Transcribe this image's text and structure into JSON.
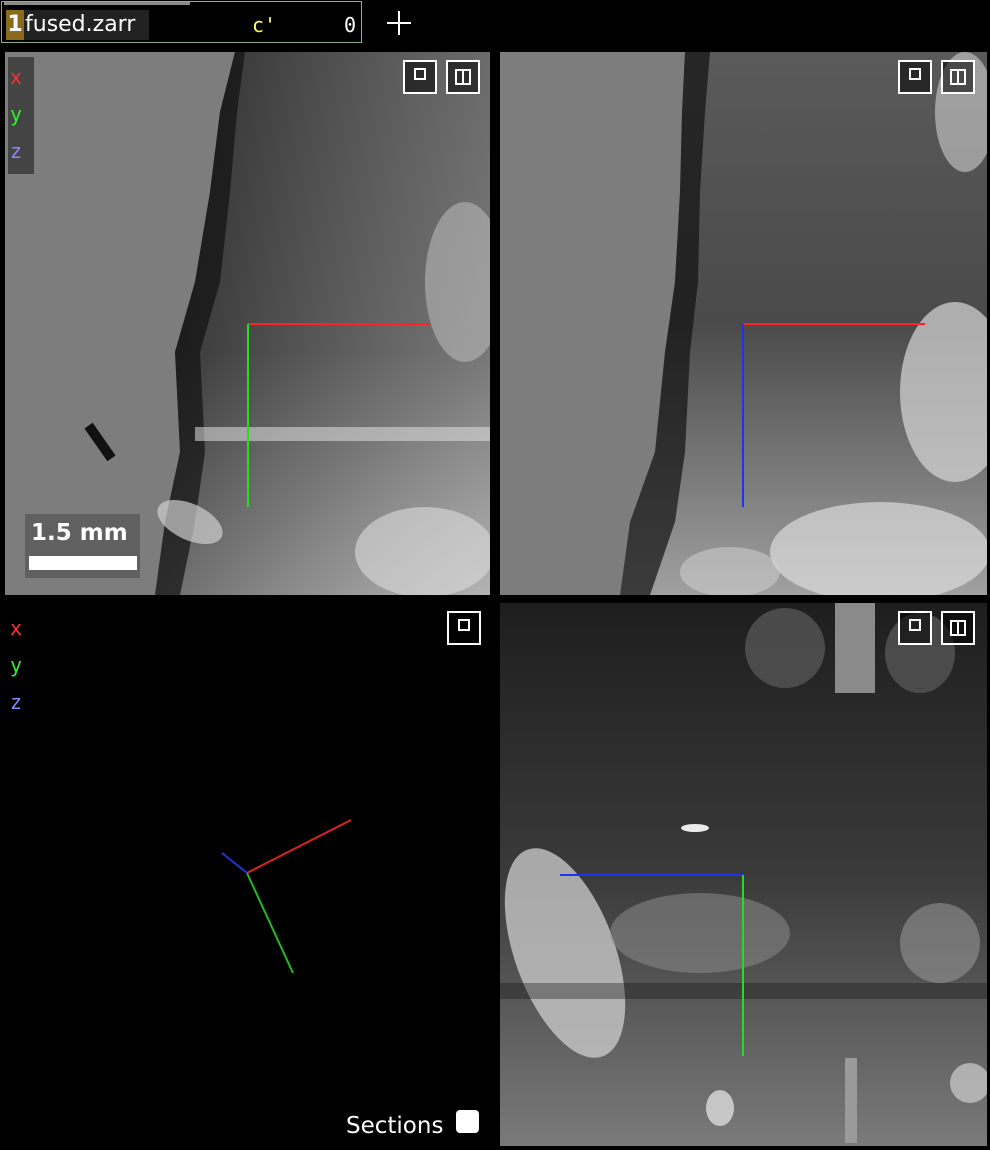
{
  "layer": {
    "index": "1",
    "name": "fused.zarr",
    "dimension_label": "c'",
    "dimension_value": "0"
  },
  "toolbar": {
    "add_layer_icon": "plus-icon"
  },
  "axes_legend": {
    "x": "x",
    "y": "y",
    "z": "z",
    "colors": {
      "x": "#ff3333",
      "y": "#33ee33",
      "z": "#8888ff"
    }
  },
  "scalebar": {
    "label": "1.5 mm"
  },
  "panel_buttons": {
    "maximize_icon": "maximize-icon",
    "split_icon": "split-layout-icon"
  },
  "sections": {
    "label": "Sections",
    "checked": false
  }
}
